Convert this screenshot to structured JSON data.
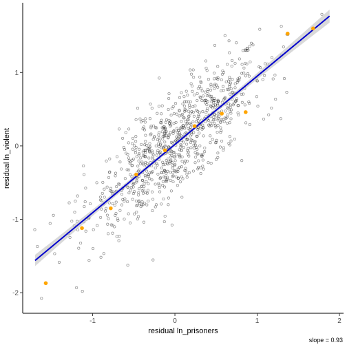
{
  "chart_data": {
    "type": "scatter",
    "title": "",
    "xlabel": "residual ln_prisoners",
    "ylabel": "residual ln_violent",
    "xlim": [
      -1.85,
      2.05
    ],
    "ylim": [
      -2.28,
      1.95
    ],
    "xticks": [
      -1,
      0,
      1,
      2
    ],
    "yticks": [
      -2,
      -1,
      0,
      1
    ],
    "xtick_labels": [
      "-1",
      "0",
      "1",
      "2"
    ],
    "ytick_labels": [
      "-2",
      "-1",
      "0",
      "1"
    ],
    "grid": false,
    "annotation": "slope = 0.93",
    "fit_line": {
      "slope": 0.93,
      "intercept": 0.02,
      "x_range": [
        -1.7,
        1.88
      ],
      "color": "#0000cc",
      "band_color": "#bfbfbf"
    },
    "binned_points": {
      "color": "#ffa500",
      "x": [
        -1.57,
        -1.13,
        -0.78,
        -0.47,
        -0.12,
        0.24,
        0.57,
        0.86,
        1.37,
        1.68
      ],
      "y": [
        -1.87,
        -1.12,
        -0.85,
        -0.39,
        -0.06,
        0.27,
        0.44,
        0.46,
        1.53,
        1.6
      ]
    },
    "scatter_points": {
      "color": "#000000",
      "n": 900,
      "note": "dense cloud of residual observations around the fit line, spread approx x -1.7..1.8, y -2.1..1.8"
    }
  }
}
